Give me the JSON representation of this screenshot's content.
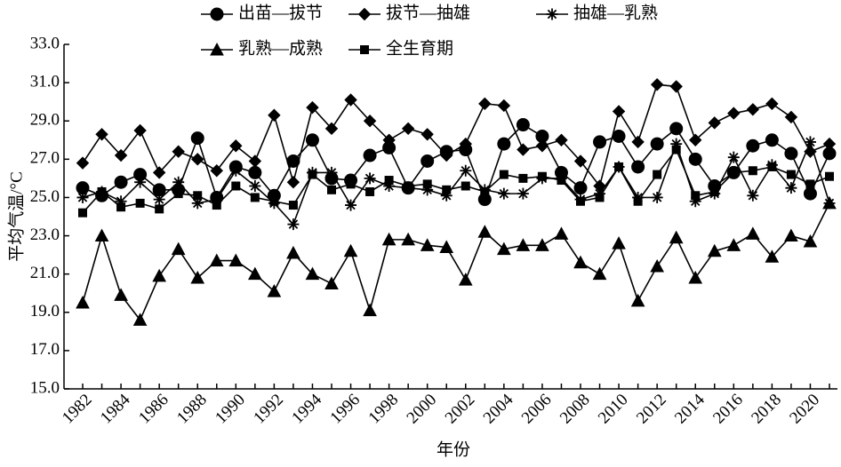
{
  "chart_data": {
    "type": "line",
    "x_label": "年份",
    "y_label": "平均气温/°C",
    "categories": [
      "1982",
      null,
      "1984",
      null,
      "1986",
      null,
      "1988",
      null,
      "1990",
      null,
      "1992",
      null,
      "1994",
      null,
      "1996",
      null,
      "1998",
      null,
      "2000",
      null,
      "2002",
      null,
      "2004",
      null,
      "2006",
      null,
      "2008",
      null,
      "2010",
      null,
      "2012",
      null,
      "2014",
      null,
      "2016",
      null,
      "2018",
      null,
      "2020",
      null
    ],
    "series": [
      {
        "name": "出苗—拔节",
        "color": "#000000",
        "marker": "circle",
        "values": [
          25.5,
          25.1,
          25.8,
          26.2,
          25.4,
          25.4,
          28.1,
          25.0,
          26.6,
          26.3,
          25.1,
          26.9,
          28.0,
          26.0,
          25.9,
          27.2,
          27.6,
          25.5,
          26.9,
          27.4,
          27.5,
          24.9,
          27.8,
          28.8,
          28.2,
          26.3,
          25.5,
          27.9,
          28.2,
          26.6,
          27.8,
          28.6,
          27.0,
          25.6,
          26.3,
          27.7,
          28.0,
          27.3,
          25.2,
          27.3
        ]
      },
      {
        "name": "拔节—抽雄",
        "color": "#000000",
        "marker": "diamond",
        "values": [
          26.8,
          28.3,
          27.2,
          28.5,
          26.3,
          27.4,
          27.0,
          26.4,
          27.7,
          26.9,
          29.3,
          25.8,
          29.7,
          28.6,
          30.1,
          29.0,
          28.0,
          28.6,
          28.3,
          27.2,
          27.8,
          29.9,
          29.8,
          27.5,
          27.7,
          28.0,
          26.9,
          25.6,
          29.5,
          27.9,
          30.9,
          30.8,
          28.0,
          28.9,
          29.4,
          29.6,
          29.9,
          29.2,
          27.4,
          27.8
        ]
      },
      {
        "name": "抽雄—乳熟",
        "color": "#000000",
        "marker": "asterisk",
        "values": [
          25.0,
          25.3,
          24.8,
          25.8,
          24.9,
          25.8,
          24.7,
          24.9,
          26.4,
          25.6,
          24.7,
          23.6,
          26.3,
          26.3,
          24.6,
          26.0,
          25.6,
          25.5,
          25.4,
          25.1,
          26.4,
          25.4,
          25.2,
          25.2,
          26.0,
          26.0,
          24.9,
          25.2,
          26.6,
          25.0,
          25.0,
          27.8,
          24.8,
          25.2,
          27.1,
          25.1,
          26.7,
          25.5,
          27.9,
          24.7
        ]
      },
      {
        "name": "乳熟—成熟",
        "color": "#000000",
        "marker": "triangle",
        "values": [
          19.5,
          23.0,
          19.9,
          18.6,
          20.9,
          22.3,
          20.8,
          21.7,
          21.7,
          21.0,
          20.1,
          22.1,
          21.0,
          20.5,
          22.2,
          19.1,
          22.8,
          22.8,
          22.5,
          22.4,
          20.7,
          23.2,
          22.3,
          22.5,
          22.5,
          23.1,
          21.6,
          21.0,
          22.6,
          19.6,
          21.4,
          22.9,
          20.8,
          22.2,
          22.5,
          23.1,
          21.9,
          23.0,
          22.7,
          24.7
        ]
      },
      {
        "name": "全生育期",
        "color": "#000000",
        "marker": "square",
        "values": [
          24.2,
          25.3,
          24.5,
          24.7,
          24.4,
          25.2,
          25.1,
          24.6,
          25.6,
          25.0,
          24.8,
          24.6,
          26.2,
          25.4,
          25.7,
          25.3,
          25.9,
          25.6,
          25.7,
          25.4,
          25.6,
          25.3,
          26.2,
          26.0,
          26.1,
          25.9,
          24.8,
          25.0,
          26.6,
          24.8,
          26.2,
          27.5,
          25.1,
          25.3,
          26.3,
          26.4,
          26.6,
          26.2,
          25.7,
          26.1
        ]
      }
    ],
    "ylim": [
      15,
      33
    ],
    "yticks": [
      {
        "value": 15,
        "label": "15.0"
      },
      {
        "value": 17,
        "label": "17.0"
      },
      {
        "value": 19,
        "label": "19.0"
      },
      {
        "value": 21,
        "label": "21.0"
      },
      {
        "value": 23,
        "label": "23.0"
      },
      {
        "value": 25,
        "label": "25.0"
      },
      {
        "value": 27,
        "label": "27.0"
      },
      {
        "value": 29,
        "label": "29.0"
      },
      {
        "value": 31,
        "label": "31.0"
      },
      {
        "value": 33,
        "label": "33.0"
      }
    ],
    "grid": false,
    "legend": "top"
  }
}
